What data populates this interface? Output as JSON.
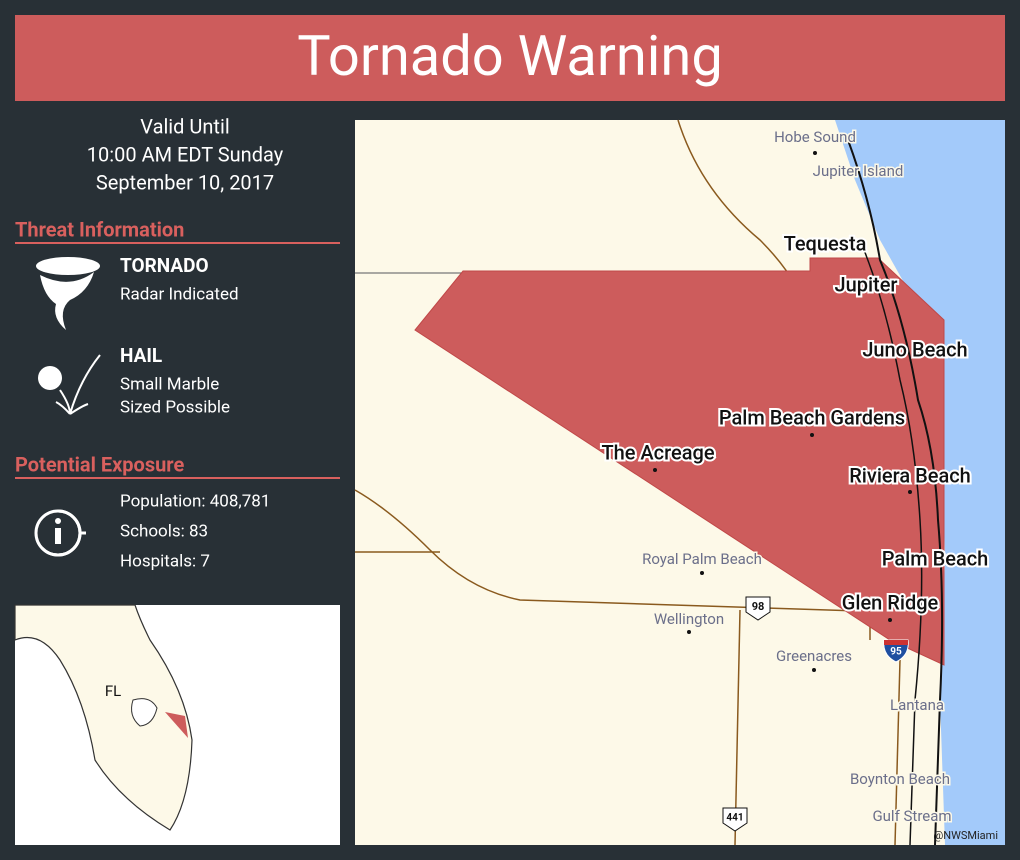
{
  "header": {
    "title": "Tornado Warning"
  },
  "valid": {
    "label": "Valid Until",
    "time": "10:00 AM EDT Sunday",
    "date": "September 10, 2017"
  },
  "threat": {
    "heading": "Threat Information",
    "items": [
      {
        "title": "TORNADO",
        "detail": [
          "Radar Indicated"
        ]
      },
      {
        "title": "HAIL",
        "detail": [
          "Small Marble",
          "Sized Possible"
        ]
      }
    ]
  },
  "exposure": {
    "heading": "Potential Exposure",
    "items": [
      "Population: 408,781",
      "Schools: 83",
      "Hospitals: 7"
    ]
  },
  "inset": {
    "label": "FL"
  },
  "map": {
    "warned_places": [
      "Tequesta",
      "Jupiter",
      "Juno Beach",
      "Palm Beach Gardens",
      "The Acreage",
      "Riviera Beach",
      "Palm Beach",
      "Glen Ridge"
    ],
    "other_places": [
      "Hobe Sound",
      "Jupiter Island",
      "Royal Palm Beach",
      "Wellington",
      "Greenacres",
      "Lantana",
      "Boynton Beach",
      "Gulf Stream"
    ],
    "highways": [
      "98",
      "95",
      "441"
    ],
    "credit": "@NWSMiami"
  }
}
